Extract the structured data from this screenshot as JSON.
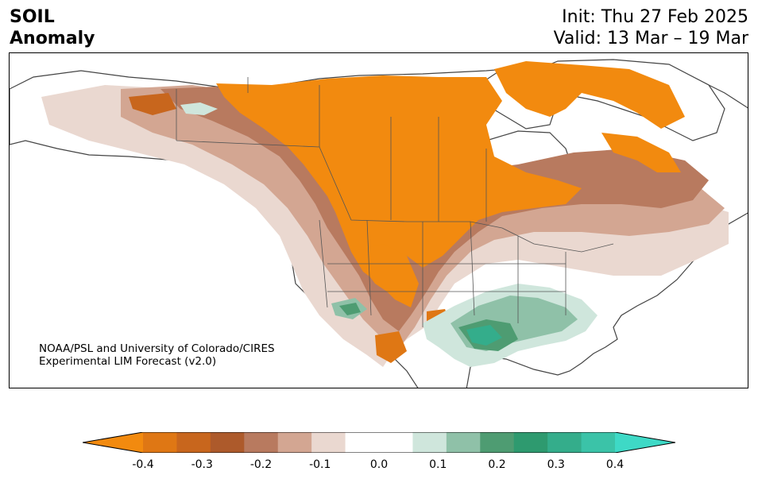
{
  "header": {
    "title_line1": "SOIL",
    "title_line2": "Anomaly",
    "init_text": "Init: Thu 27 Feb 2025",
    "valid_text": "Valid: 13 Mar – 19 Mar"
  },
  "credit": {
    "line1": "NOAA/PSL and University of Colorado/CIRES",
    "line2": "Experimental LIM Forecast (v2.0)"
  },
  "colorbar": {
    "colors": [
      "#f28a0f",
      "#df7714",
      "#c8661d",
      "#ad5a2b",
      "#b87a5f",
      "#d3a692",
      "#ead8d0",
      "#ffffff",
      "#ffffff",
      "#cfe6dc",
      "#8fc1a8",
      "#4e9c72",
      "#2e9a6f",
      "#34ad8b",
      "#3bc3a8",
      "#3ed9c6"
    ],
    "tick_labels": [
      "-0.4",
      "-0.3",
      "-0.2",
      "-0.1",
      "0.0",
      "0.1",
      "0.2",
      "0.3",
      "0.4"
    ]
  },
  "legend_colors": {
    "dry_strong": "#f28a0f",
    "dry_mid": "#c8661d",
    "dry_weak": "#ead8d0",
    "wet_weak": "#cfe6dc",
    "wet_mid": "#4e9c72",
    "wet_strong": "#2e9a6f"
  }
}
